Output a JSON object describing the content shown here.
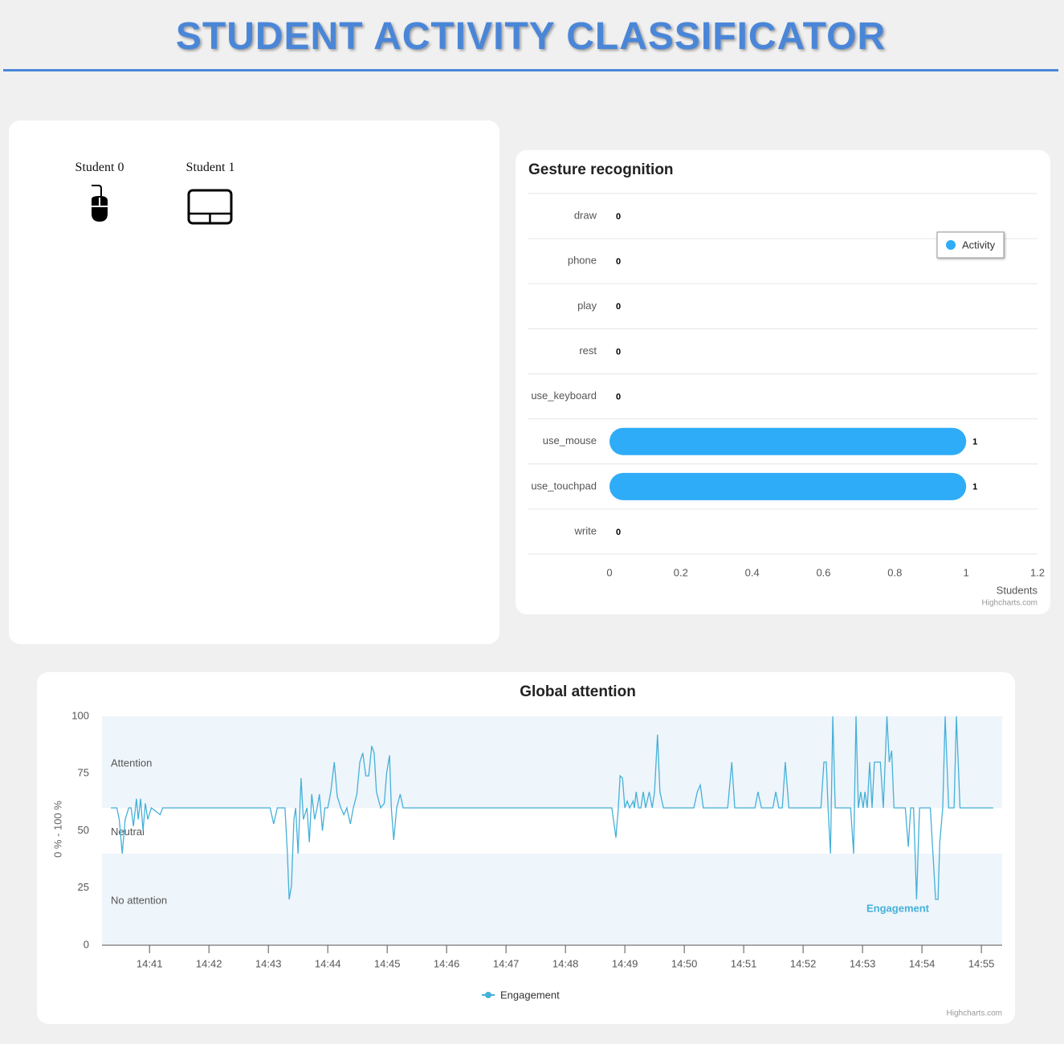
{
  "header": {
    "title": "STUDENT ACTIVITY CLASSIFICATOR"
  },
  "students": [
    {
      "label": "Student 0"
    },
    {
      "label": "Student 1"
    }
  ],
  "chart_data": [
    {
      "type": "bar",
      "orientation": "horizontal",
      "title": "Gesture recognition",
      "categories": [
        "draw",
        "phone",
        "play",
        "rest",
        "use_keyboard",
        "use_mouse",
        "use_touchpad",
        "write"
      ],
      "series": [
        {
          "name": "Activity",
          "color": "#2eacf7",
          "values": [
            0,
            0,
            0,
            0,
            0,
            1,
            1,
            0
          ]
        }
      ],
      "xlim": [
        0,
        1.2
      ],
      "xticks": [
        0,
        0.2,
        0.4,
        0.6,
        0.8,
        1,
        1.2
      ],
      "x_label": "Students",
      "legend": "top-right",
      "credits": "Highcharts.com"
    },
    {
      "type": "line",
      "title": "Global attention",
      "y_label": "0 % - 100 %",
      "ylim": [
        0,
        100
      ],
      "yticks": [
        0,
        25,
        50,
        75,
        100
      ],
      "xlim": [
        880.2,
        895.35
      ],
      "xticks": [
        {
          "value": 881,
          "label": "14:41"
        },
        {
          "value": 882,
          "label": "14:42"
        },
        {
          "value": 883,
          "label": "14:43"
        },
        {
          "value": 884,
          "label": "14:44"
        },
        {
          "value": 885,
          "label": "14:45"
        },
        {
          "value": 886,
          "label": "14:46"
        },
        {
          "value": 887,
          "label": "14:47"
        },
        {
          "value": 888,
          "label": "14:48"
        },
        {
          "value": 889,
          "label": "14:49"
        },
        {
          "value": 890,
          "label": "14:50"
        },
        {
          "value": 891,
          "label": "14:51"
        },
        {
          "value": 892,
          "label": "14:52"
        },
        {
          "value": 893,
          "label": "14:53"
        },
        {
          "value": 894,
          "label": "14:54"
        },
        {
          "value": 895,
          "label": "14:55"
        }
      ],
      "plot_bands": [
        {
          "label": "No attention",
          "from": 0,
          "to": 40,
          "color": "#eef5fb"
        },
        {
          "label": "Neutral",
          "from": 40,
          "to": 60,
          "color": "#ffffff"
        },
        {
          "label": "Attention",
          "from": 60,
          "to": 100,
          "color": "#eef5fb"
        }
      ],
      "series": [
        {
          "name": "Engagement",
          "color": "#45b0d8",
          "x": [
            880.35,
            880.45,
            880.49,
            880.54,
            880.59,
            880.65,
            880.69,
            880.73,
            880.78,
            880.81,
            880.85,
            880.89,
            880.93,
            880.97,
            881.03,
            881.18,
            881.22,
            883.03,
            883.09,
            883.15,
            883.28,
            883.32,
            883.35,
            883.39,
            883.43,
            883.46,
            883.5,
            883.55,
            883.59,
            883.65,
            883.69,
            883.73,
            883.78,
            883.82,
            883.86,
            883.91,
            883.95,
            884.0,
            884.05,
            884.11,
            884.16,
            884.22,
            884.27,
            884.32,
            884.38,
            884.43,
            884.49,
            884.54,
            884.59,
            884.64,
            884.69,
            884.74,
            884.78,
            884.82,
            884.89,
            884.95,
            884.99,
            885.04,
            885.07,
            885.11,
            885.16,
            885.22,
            885.27,
            888.78,
            888.85,
            888.89,
            888.92,
            888.96,
            889.0,
            889.04,
            889.08,
            889.14,
            889.16,
            889.19,
            889.23,
            889.27,
            889.31,
            889.35,
            889.41,
            889.46,
            889.5,
            889.55,
            889.59,
            889.65,
            890.16,
            890.22,
            890.27,
            890.32,
            890.73,
            890.8,
            890.85,
            891.19,
            891.24,
            891.3,
            891.49,
            891.54,
            891.59,
            891.65,
            891.7,
            891.76,
            892.3,
            892.35,
            892.39,
            892.42,
            892.46,
            892.5,
            892.54,
            892.8,
            892.85,
            892.89,
            892.93,
            892.97,
            893.01,
            893.04,
            893.08,
            893.12,
            893.16,
            893.2,
            893.3,
            893.35,
            893.41,
            893.45,
            893.49,
            893.53,
            893.72,
            893.77,
            893.81,
            893.86,
            893.91,
            893.96,
            894.14,
            894.23,
            894.27,
            894.3,
            894.35,
            894.39,
            894.45,
            894.54,
            894.58,
            894.64,
            895.2
          ],
          "values": [
            60,
            60,
            55,
            40,
            55,
            60,
            60,
            52,
            64,
            55,
            64,
            50,
            62,
            55,
            60,
            57,
            60,
            60,
            53,
            60,
            60,
            40,
            20,
            26,
            55,
            60,
            40,
            73,
            55,
            60,
            45,
            66,
            55,
            60,
            66,
            50,
            60,
            60,
            67,
            80,
            65,
            60,
            57,
            60,
            53,
            60,
            66,
            80,
            84,
            74,
            74,
            87,
            84,
            67,
            60,
            62,
            75,
            83,
            60,
            46,
            60,
            66,
            60,
            60,
            47,
            60,
            74,
            73,
            60,
            63,
            60,
            63,
            60,
            67,
            60,
            60,
            67,
            60,
            67,
            60,
            67,
            92,
            67,
            60,
            60,
            67,
            70,
            60,
            60,
            80,
            60,
            60,
            67,
            60,
            60,
            67,
            60,
            60,
            80,
            60,
            60,
            80,
            80,
            60,
            40,
            100,
            60,
            60,
            40,
            100,
            60,
            67,
            60,
            67,
            60,
            80,
            60,
            80,
            80,
            60,
            100,
            80,
            85,
            60,
            60,
            43,
            60,
            60,
            20,
            60,
            60,
            20,
            20,
            45,
            60,
            100,
            60,
            60,
            100,
            60,
            60
          ]
        }
      ],
      "legend": "bottom",
      "credits": "Highcharts.com"
    }
  ]
}
